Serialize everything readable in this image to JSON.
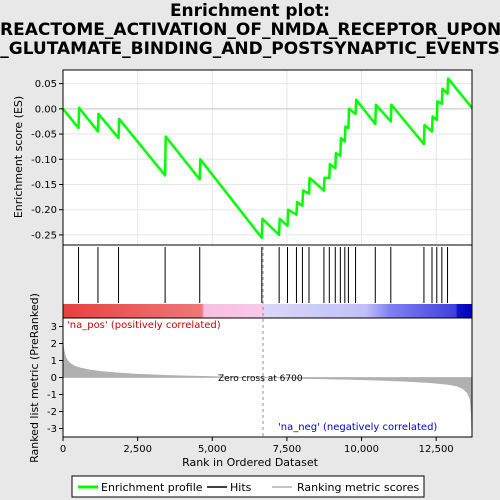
{
  "title_lines": [
    "Enrichment plot:",
    "REACTOME_ACTIVATION_OF_NMDA_RECEPTOR_UPON",
    "_GLUTAMATE_BINDING_AND_POSTSYNAPTIC_EVENTS"
  ],
  "chart_data": {
    "type": "line",
    "x_max": 13700,
    "es": {
      "ylabel": "Enrichment score (ES)",
      "ylim": [
        -0.27,
        0.077
      ],
      "yticks": [
        -0.25,
        -0.2,
        -0.15,
        -0.1,
        -0.05,
        0.0,
        0.05
      ],
      "ytick_labels": [
        "-0.25",
        "-0.20",
        "-0.15",
        "-0.10",
        "-0.05",
        "0.00",
        "0.05"
      ],
      "color": "#00ff00",
      "points": [
        [
          0,
          0.0
        ],
        [
          520,
          -0.038
        ],
        [
          540,
          0.002
        ],
        [
          1170,
          -0.045
        ],
        [
          1190,
          -0.01
        ],
        [
          1860,
          -0.058
        ],
        [
          1880,
          -0.02
        ],
        [
          3420,
          -0.132
        ],
        [
          3440,
          -0.055
        ],
        [
          4580,
          -0.14
        ],
        [
          4600,
          -0.1
        ],
        [
          6660,
          -0.256
        ],
        [
          6680,
          -0.218
        ],
        [
          7240,
          -0.25
        ],
        [
          7260,
          -0.218
        ],
        [
          7520,
          -0.232
        ],
        [
          7540,
          -0.2
        ],
        [
          7820,
          -0.21
        ],
        [
          7840,
          -0.185
        ],
        [
          8020,
          -0.192
        ],
        [
          8040,
          -0.162
        ],
        [
          8240,
          -0.168
        ],
        [
          8260,
          -0.137
        ],
        [
          8740,
          -0.162
        ],
        [
          8760,
          -0.137
        ],
        [
          8920,
          -0.137
        ],
        [
          8940,
          -0.11
        ],
        [
          9120,
          -0.118
        ],
        [
          9140,
          -0.088
        ],
        [
          9290,
          -0.093
        ],
        [
          9310,
          -0.058
        ],
        [
          9440,
          -0.065
        ],
        [
          9460,
          -0.035
        ],
        [
          9560,
          -0.038
        ],
        [
          9580,
          0.0
        ],
        [
          9800,
          -0.01
        ],
        [
          9820,
          0.018
        ],
        [
          10460,
          -0.03
        ],
        [
          10480,
          0.008
        ],
        [
          10980,
          -0.025
        ],
        [
          11000,
          0.008
        ],
        [
          12090,
          -0.07
        ],
        [
          12110,
          -0.032
        ],
        [
          12360,
          -0.045
        ],
        [
          12380,
          -0.015
        ],
        [
          12520,
          -0.022
        ],
        [
          12540,
          0.015
        ],
        [
          12690,
          0.01
        ],
        [
          12710,
          0.04
        ],
        [
          12880,
          0.03
        ],
        [
          12900,
          0.06
        ],
        [
          13700,
          0.002
        ]
      ]
    },
    "hits": [
      520,
      1170,
      1860,
      3420,
      4580,
      6660,
      7240,
      7520,
      7820,
      8020,
      8240,
      8740,
      8920,
      9120,
      9290,
      9440,
      9560,
      9800,
      10460,
      10980,
      12090,
      12360,
      12520,
      12690,
      12880
    ],
    "ranked": {
      "ylabel": "Ranked list metric (PreRanked)",
      "ylim": [
        -3.5,
        3.5
      ],
      "yticks": [
        -3,
        -2,
        -1,
        0,
        1,
        2,
        3
      ],
      "ytick_labels": [
        "-3",
        "-2",
        "-1",
        "0",
        "1",
        "2",
        "3"
      ],
      "zero_cross": 6700,
      "zero_cross_label": "Zero cross at 6700",
      "pos_label": "'na_pos' (positively correlated)",
      "neg_label": "'na_neg' (negatively correlated)",
      "pos_label_color": "#cc0000",
      "neg_label_color": "#0000cc",
      "fill_color": "#b0b0b0",
      "curve": [
        [
          0,
          2.0
        ],
        [
          30,
          1.6
        ],
        [
          80,
          1.25
        ],
        [
          150,
          1.0
        ],
        [
          250,
          0.82
        ],
        [
          400,
          0.66
        ],
        [
          600,
          0.55
        ],
        [
          900,
          0.44
        ],
        [
          1300,
          0.34
        ],
        [
          1800,
          0.27
        ],
        [
          2500,
          0.19
        ],
        [
          3500,
          0.12
        ],
        [
          4500,
          0.07
        ],
        [
          5500,
          0.03
        ],
        [
          6700,
          0.0
        ],
        [
          8000,
          -0.05
        ],
        [
          9500,
          -0.1
        ],
        [
          10500,
          -0.15
        ],
        [
          11500,
          -0.22
        ],
        [
          12300,
          -0.3
        ],
        [
          12900,
          -0.4
        ],
        [
          13200,
          -0.5
        ],
        [
          13400,
          -0.65
        ],
        [
          13550,
          -0.9
        ],
        [
          13640,
          -1.3
        ],
        [
          13680,
          -2.2
        ],
        [
          13700,
          -3.4
        ]
      ]
    },
    "xlabel": "Rank in Ordered Dataset",
    "xticks": [
      0,
      2500,
      5000,
      7500,
      10000,
      12500
    ],
    "xtick_labels": [
      "0",
      "2,500",
      "5,000",
      "7,500",
      "10,000",
      "12,500"
    ],
    "legend": {
      "entries": [
        {
          "label": "Enrichment profile",
          "color": "#00ff00"
        },
        {
          "label": "Hits",
          "color": "#000000"
        },
        {
          "label": "Ranking metric scores",
          "color": "#b0b0b0"
        }
      ],
      "placement": "bottom"
    }
  }
}
